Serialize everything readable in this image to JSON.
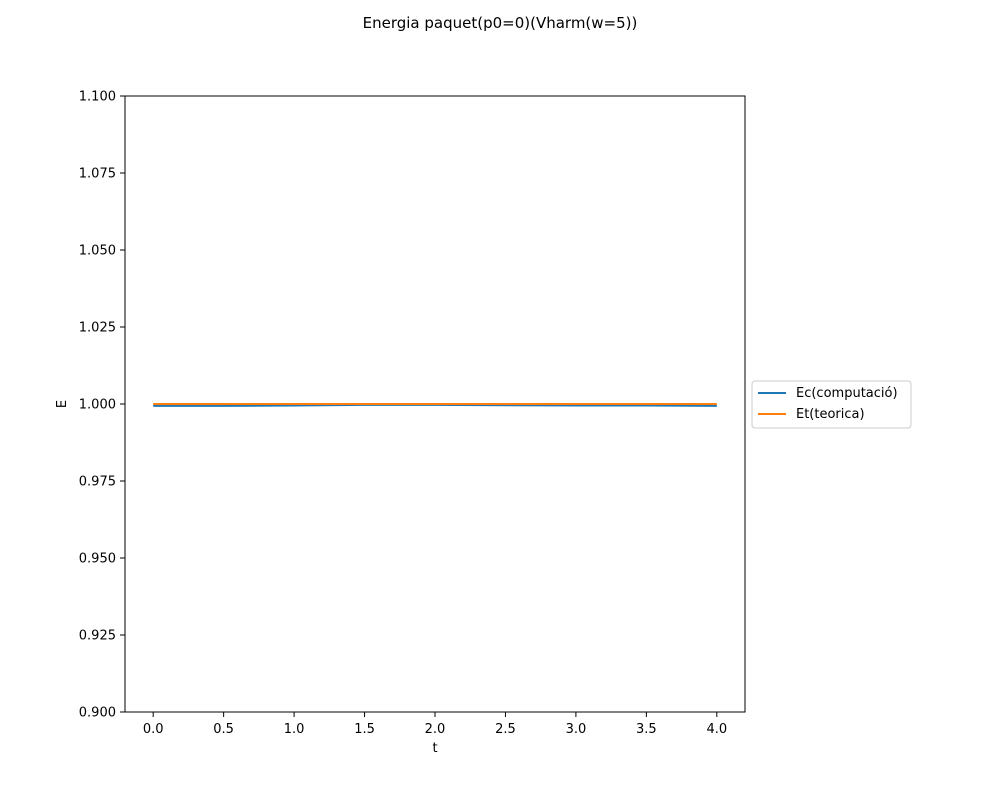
{
  "chart_data": {
    "type": "line",
    "title": "Energia paquet(p0=0)(Vharm(w=5))",
    "xlabel": "t",
    "ylabel": "E",
    "xlim": [
      -0.2,
      4.2
    ],
    "ylim": [
      0.9,
      1.1
    ],
    "xticks": [
      "0.0",
      "0.5",
      "1.0",
      "1.5",
      "2.0",
      "2.5",
      "3.0",
      "3.5",
      "4.0"
    ],
    "xtick_values": [
      0.0,
      0.5,
      1.0,
      1.5,
      2.0,
      2.5,
      3.0,
      3.5,
      4.0
    ],
    "yticks": [
      "0.900",
      "0.925",
      "0.950",
      "0.975",
      "1.000",
      "1.025",
      "1.050",
      "1.075",
      "1.100"
    ],
    "ytick_values": [
      0.9,
      0.925,
      0.95,
      0.975,
      1.0,
      1.025,
      1.05,
      1.075,
      1.1
    ],
    "grid": false,
    "legend_position": "center-right-outside",
    "series": [
      {
        "name": "Ec(computació)",
        "color": "#1f77b4",
        "x": [
          0.0,
          0.5,
          1.0,
          1.5,
          2.0,
          2.5,
          3.0,
          3.5,
          4.0
        ],
        "values": [
          0.9994,
          0.9994,
          0.9995,
          0.9997,
          0.9997,
          0.9996,
          0.9995,
          0.9995,
          0.9994
        ]
      },
      {
        "name": "Et(teorica)",
        "color": "#ff7f0e",
        "x": [
          0.0,
          0.5,
          1.0,
          1.5,
          2.0,
          2.5,
          3.0,
          3.5,
          4.0
        ],
        "values": [
          1.0,
          1.0,
          1.0,
          1.0,
          1.0,
          1.0,
          1.0,
          1.0,
          1.0
        ]
      }
    ]
  }
}
